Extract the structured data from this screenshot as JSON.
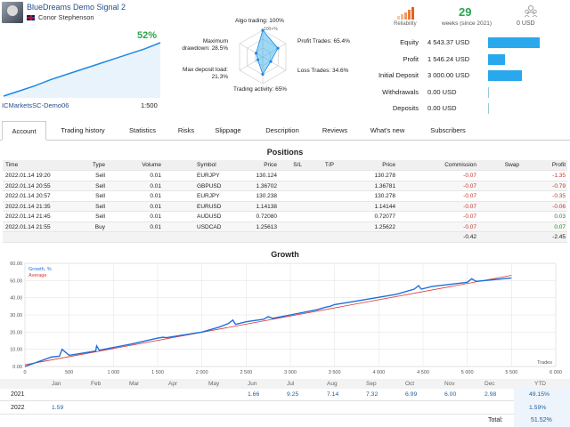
{
  "header": {
    "signal_name": "BlueDreams Demo Signal 2",
    "author": "Conor Stephenson",
    "gain": "52%",
    "broker": "ICMarketsSC-Demo06",
    "leverage": "1:500"
  },
  "radar": {
    "algo": "Algo trading: 100%",
    "profit_trades": "Profit Trades: 65.4%",
    "loss_trades": "Loss Trades: 34.6%",
    "activity": "Trading activity: 65%",
    "max_deposit_load_a": "Max deposit load:",
    "max_deposit_load_b": "21.3%",
    "max_drawdown_a": "Maximum",
    "max_drawdown_b": "drawdown: 28.5%",
    "tick_100": "100+%",
    "values": [
      100,
      65.4,
      34.6,
      65,
      21.3,
      28.5
    ]
  },
  "stats": {
    "reliability_label": "Reliability",
    "weeks": "29",
    "weeks_label": "weeks (since 2021)",
    "subscribers": "0 USD"
  },
  "money": [
    {
      "label": "Equity",
      "value": "4 543.37 USD",
      "fraction": 1.0
    },
    {
      "label": "Profit",
      "value": "1 546.24 USD",
      "fraction": 0.33
    },
    {
      "label": "Initial Deposit",
      "value": "3 000.00 USD",
      "fraction": 0.66
    },
    {
      "label": "Withdrawals",
      "value": "0.00 USD",
      "fraction": 0
    },
    {
      "label": "Deposits",
      "value": "0.00 USD",
      "fraction": 0
    }
  ],
  "tabs": [
    "Account",
    "Trading history",
    "Statistics",
    "Risks",
    "Slippage",
    "Description",
    "Reviews",
    "What's new",
    "Subscribers"
  ],
  "positions": {
    "title": "Positions",
    "headers": [
      "Time",
      "Type",
      "Volume",
      "Symbol",
      "Price",
      "S/L",
      "T/P",
      "Price",
      "Commission",
      "Swap",
      "Profit"
    ],
    "rows": [
      [
        "2022.01.14 19:20",
        "Sell",
        "0.01",
        "EURJPY",
        "130.124",
        "",
        "",
        "130.278",
        "-0.07",
        "",
        "-1.35"
      ],
      [
        "2022.01.14 20:55",
        "Sell",
        "0.01",
        "GBPUSD",
        "1.36702",
        "",
        "",
        "1.36781",
        "-0.07",
        "",
        "-0.79"
      ],
      [
        "2022.01.14 20:57",
        "Sell",
        "0.01",
        "EURJPY",
        "130.238",
        "",
        "",
        "130.278",
        "-0.07",
        "",
        "-0.35"
      ],
      [
        "2022.01.14 21:35",
        "Sell",
        "0.01",
        "EURUSD",
        "1.14138",
        "",
        "",
        "1.14144",
        "-0.07",
        "",
        "-0.06"
      ],
      [
        "2022.01.14 21:45",
        "Sell",
        "0.01",
        "AUDUSD",
        "0.72080",
        "",
        "",
        "0.72077",
        "-0.07",
        "",
        "0.03"
      ],
      [
        "2022.01.14 21:55",
        "Buy",
        "0.01",
        "USDCAD",
        "1.25613",
        "",
        "",
        "1.25622",
        "-0.07",
        "",
        "0.07"
      ]
    ],
    "total_commission": "-0.42",
    "total_profit": "-2.45"
  },
  "growth": {
    "title": "Growth",
    "chart_data": {
      "type": "line",
      "legend": [
        "Growth, %",
        "Average"
      ],
      "xlabel": "Trades",
      "x_ticks": [
        "0",
        "500",
        "1 000",
        "1 500",
        "2 000",
        "2 500",
        "3 000",
        "3 500",
        "4 000",
        "4 500",
        "5 000",
        "5 500",
        "6 000"
      ],
      "y_ticks": [
        "0.00",
        "10.00",
        "20.00",
        "30.00",
        "40.00",
        "50.00",
        "60.00"
      ],
      "xlim": [
        0,
        6000
      ],
      "ylim": [
        0,
        60
      ],
      "series": [
        {
          "name": "Growth, %",
          "color": "#1e6fd9",
          "x": [
            0,
            300,
            390,
            420,
            500,
            800,
            810,
            840,
            1200,
            1500,
            1560,
            1600,
            2000,
            2200,
            2300,
            2350,
            2380,
            2500,
            2700,
            2750,
            2800,
            3000,
            3300,
            3400,
            3450,
            3500,
            3800,
            4200,
            4400,
            4450,
            4480,
            4600,
            5000,
            5050,
            5100,
            5300,
            5500
          ],
          "y": [
            0,
            5.5,
            6,
            10,
            6.5,
            9,
            12,
            9.5,
            13,
            16.5,
            17,
            16.8,
            20,
            23,
            25,
            27,
            24.5,
            26,
            27.5,
            29,
            28,
            30,
            33,
            34.5,
            35,
            36,
            38.5,
            42,
            45,
            47,
            45,
            46.5,
            49,
            51,
            49.5,
            50.5,
            51.5
          ]
        },
        {
          "name": "Average",
          "color": "#d33",
          "x": [
            0,
            5500
          ],
          "y": [
            1,
            53
          ]
        }
      ]
    },
    "mini_chart_data": {
      "type": "area",
      "series": [
        {
          "name": "",
          "x": [
            0,
            0.1,
            0.2,
            0.3,
            0.4,
            0.5,
            0.6,
            0.7,
            0.8,
            0.9,
            1.0
          ],
          "y": [
            0,
            5,
            10,
            16,
            21,
            26,
            31,
            36,
            41,
            46,
            52
          ]
        }
      ]
    }
  },
  "yearly": {
    "months": [
      "Jan",
      "Feb",
      "Mar",
      "Apr",
      "May",
      "Jun",
      "Jul",
      "Aug",
      "Sep",
      "Oct",
      "Nov",
      "Dec",
      "YTD"
    ],
    "rows": [
      {
        "year": "2021",
        "values": [
          "",
          "",
          "",
          "",
          "",
          "1.66",
          "9.25",
          "7.14",
          "7.32",
          "6.99",
          "6.00",
          "2.98"
        ],
        "ytd": "49.15%"
      },
      {
        "year": "2022",
        "values": [
          "1.59",
          "",
          "",
          "",
          "",
          "",
          "",
          "",
          "",
          "",
          "",
          ""
        ],
        "ytd": "1.59%"
      }
    ],
    "total_label": "Total:",
    "total": "51.52%"
  }
}
